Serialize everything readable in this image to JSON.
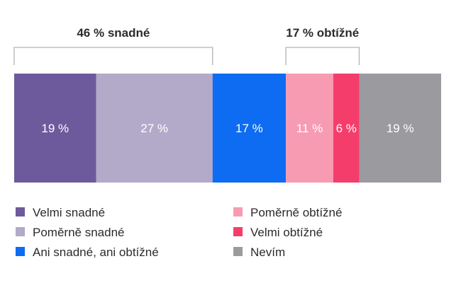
{
  "chart_data": {
    "type": "bar",
    "orientation": "horizontal-stacked",
    "segments": [
      {
        "name": "Velmi snadné",
        "value": 19,
        "label": "19 %",
        "color": "#6d5a9c"
      },
      {
        "name": "Poměrně snadné",
        "value": 27,
        "label": "27 %",
        "color": "#b3a9c9"
      },
      {
        "name": "Ani snadné, ani obtížné",
        "value": 17,
        "label": "17 %",
        "color": "#0d6cf2"
      },
      {
        "name": "Poměrně obtížné",
        "value": 11,
        "label": "11 %",
        "color": "#f79bb3"
      },
      {
        "name": "Velmi obtížné",
        "value": 6,
        "label": "6 %",
        "color": "#f53d6b"
      },
      {
        "name": "Nevím",
        "value": 19,
        "label": "19 %",
        "color": "#9a9a9f"
      }
    ],
    "groups": [
      {
        "label": "46 % snadné",
        "from": 0,
        "to": 1
      },
      {
        "label": "17 % obtížné",
        "from": 3,
        "to": 4
      }
    ],
    "legend": {
      "placement": "bottom",
      "columns": [
        [
          0,
          1,
          2
        ],
        [
          3,
          4,
          5
        ]
      ]
    }
  }
}
